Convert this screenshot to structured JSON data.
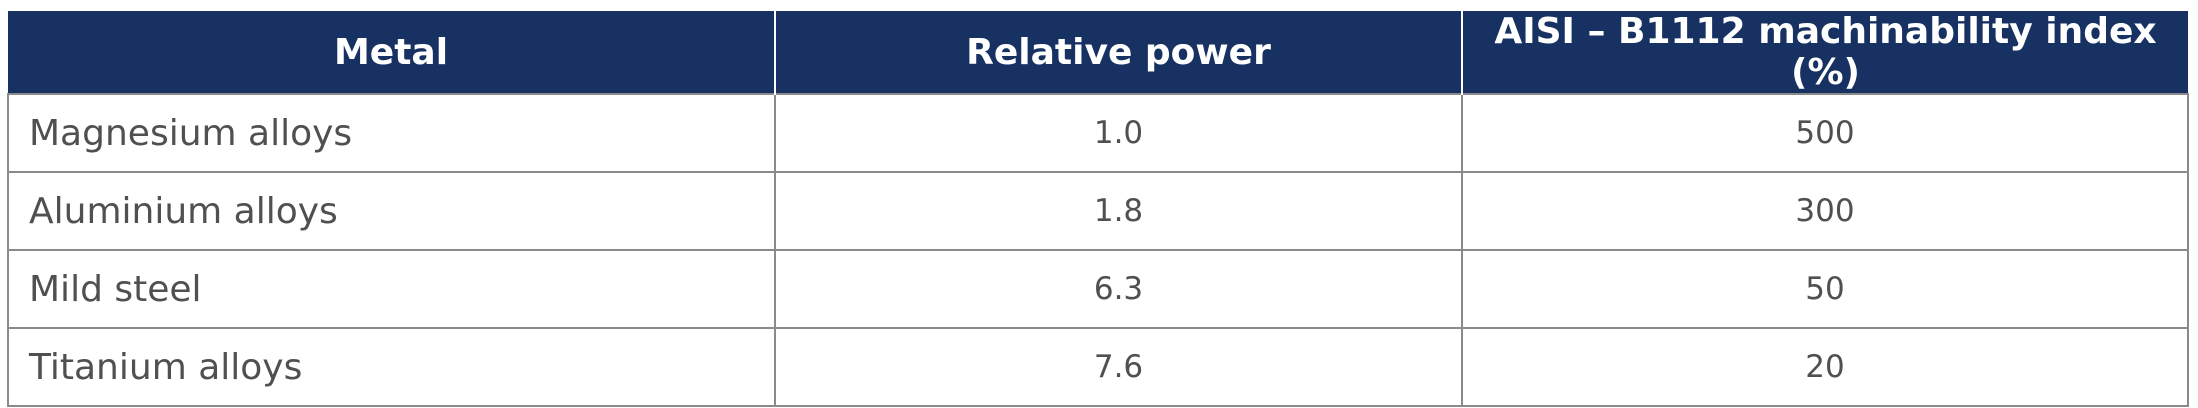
{
  "table": {
    "header": [
      "Metal",
      "Relative power",
      "AISI – B1112 machinability index (%)"
    ],
    "rows": [
      [
        "Magnesium alloys",
        "1.0",
        "500"
      ],
      [
        "Aluminium alloys",
        "1.8",
        "300"
      ],
      [
        "Mild steel",
        "6.3",
        "50"
      ],
      [
        "Titanium alloys",
        "7.6",
        "20"
      ]
    ]
  }
}
